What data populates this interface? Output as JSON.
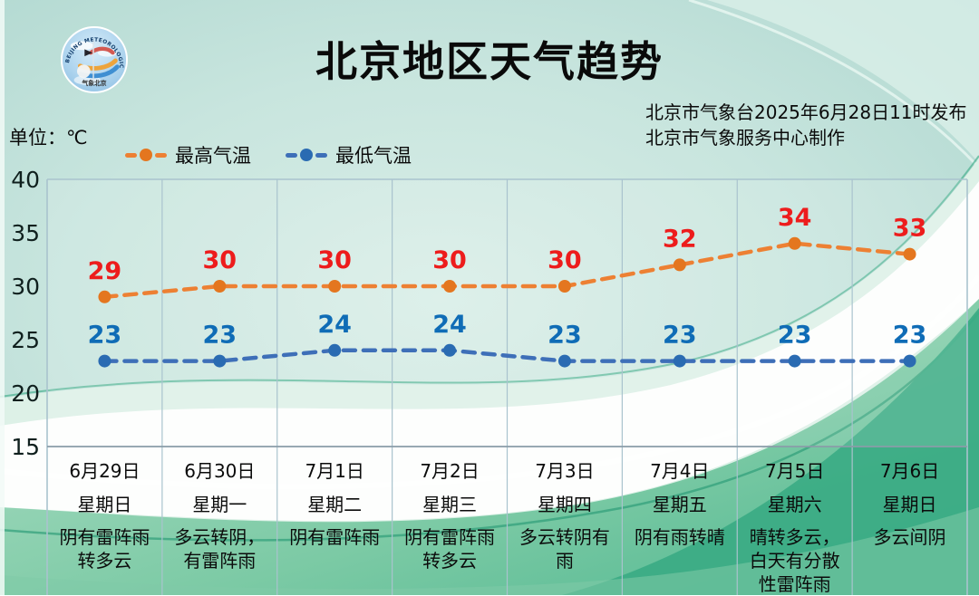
{
  "header": {
    "title": "北京地区天气趋势",
    "issued_by": "北京市气象台2025年6月28日11时发布",
    "produced_by": "北京市气象服务中心制作",
    "unit_label": "单位：℃",
    "logo": {
      "text_top": "BEIJING METEOROLOGICAL SERVICE",
      "text_bottom": "气象北京"
    }
  },
  "legend": {
    "high_label": "最高气温",
    "low_label": "最低气温"
  },
  "colors": {
    "high_line": "#ED8033",
    "high_marker": "#E4761F",
    "high_value": "#ED1C1C",
    "low_line": "#3E6FB8",
    "low_marker": "#2A6BB2",
    "low_value": "#0F6CB6",
    "grid": "#A9C3CE",
    "axis": "#8A9CA8"
  },
  "chart_data": {
    "type": "line",
    "categories": [
      "6月29日",
      "6月30日",
      "7月1日",
      "7月2日",
      "7月3日",
      "7月4日",
      "7月5日",
      "7月6日"
    ],
    "series": [
      {
        "name": "最高气温",
        "values": [
          29,
          30,
          30,
          30,
          30,
          32,
          34,
          33
        ]
      },
      {
        "name": "最低气温",
        "values": [
          23,
          23,
          24,
          24,
          23,
          23,
          23,
          23
        ]
      }
    ],
    "title": "北京地区天气趋势",
    "xlabel": "",
    "ylabel": "℃",
    "ylim": [
      15,
      40
    ],
    "yticks": [
      40,
      35,
      30,
      25,
      20,
      15
    ],
    "grid": "vertical-only",
    "legend_position": "top",
    "line_style": "dashed"
  },
  "days": [
    {
      "date": "6月29日",
      "weekday": "星期日",
      "weather": "阴有雷阵雨转多云"
    },
    {
      "date": "6月30日",
      "weekday": "星期一",
      "weather": "多云转阴，有雷阵雨"
    },
    {
      "date": "7月1日",
      "weekday": "星期二",
      "weather": "阴有雷阵雨"
    },
    {
      "date": "7月2日",
      "weekday": "星期三",
      "weather": "阴有雷阵雨转多云"
    },
    {
      "date": "7月3日",
      "weekday": "星期四",
      "weather": "多云转阴有雨"
    },
    {
      "date": "7月4日",
      "weekday": "星期五",
      "weather": "阴有雨转晴"
    },
    {
      "date": "7月5日",
      "weekday": "星期六",
      "weather": "晴转多云，白天有分散性雷阵雨"
    },
    {
      "date": "7月6日",
      "weekday": "星期日",
      "weather": "多云间阴"
    }
  ]
}
